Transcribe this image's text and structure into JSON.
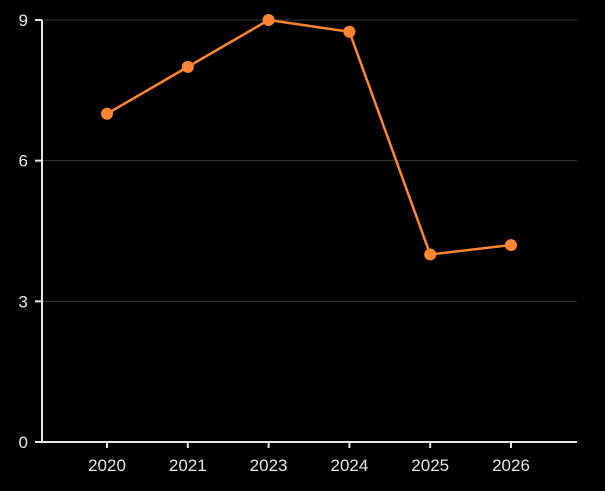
{
  "chart_data": {
    "type": "line",
    "categories": [
      "2020",
      "2021",
      "2023",
      "2024",
      "2025",
      "2026"
    ],
    "values": [
      7,
      8,
      9,
      8.75,
      4,
      4.2
    ],
    "ylim": [
      0,
      9
    ],
    "yticks": [
      "0",
      "3",
      "6",
      "9"
    ],
    "grid": true,
    "title": "",
    "xlabel": "",
    "ylabel": "",
    "colors": {
      "line": "#ff8533",
      "background": "#000000",
      "axis": "#e6e6e6",
      "grid": "#3a3a3a"
    }
  }
}
